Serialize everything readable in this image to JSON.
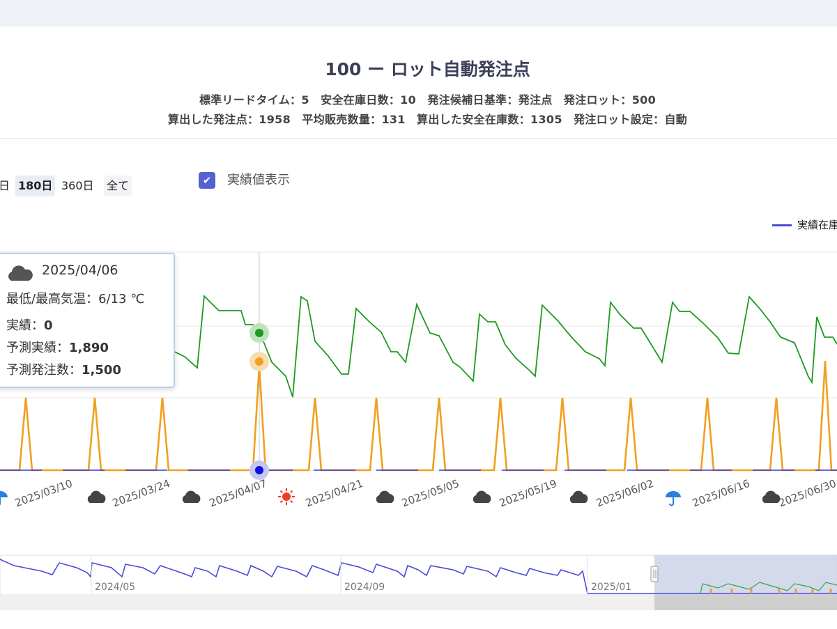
{
  "header": {
    "title": "100 ー ロット自動発注点",
    "subtitle_line1": "標準リードタイム：5　安全在庫日数：10　発注候補日基準：発注点　発注ロット：500",
    "subtitle_line2": "算出した発注点：1958　平均販売数量：131　算出した安全在庫数：1305　発注ロット設定：自動"
  },
  "controls": {
    "ranges": [
      {
        "label": "日",
        "active": false
      },
      {
        "label": "180日",
        "active": true
      },
      {
        "label": "360日",
        "active": false
      },
      {
        "label": "全て",
        "active": false
      }
    ],
    "show_actual_label": "実績値表示",
    "show_actual_checked": true
  },
  "legend": {
    "visible_entry": "実績在庫"
  },
  "tooltip": {
    "date": "2025/04/06",
    "weather_icon": "cloud-icon",
    "temp_label": "最低/最高気温：",
    "temp_value": "6/13 ℃",
    "actual_label": "実績：",
    "actual_value": "0",
    "pred_label": "予測実績：",
    "pred_value": "1,890",
    "order_label": "予測発注数：",
    "order_value": "1,500"
  },
  "chart_data": {
    "type": "line",
    "x_tick_labels": [
      "2025/03/10",
      "2025/03/24",
      "2025/04/07",
      "2025/04/21",
      "2025/05/05",
      "2025/05/19",
      "2025/06/02",
      "2025/06/16",
      "2025/06/30"
    ],
    "weather": [
      "rain",
      "cloud",
      "cloud",
      "sun",
      "cloud",
      "cloud",
      "cloud",
      "rain",
      "cloud"
    ],
    "colors": {
      "predicted_stock": "#1e9a1e",
      "predicted_order": "#f0a020",
      "actual": "#3535e0",
      "overview_line": "#4a4ad8"
    },
    "series": [
      {
        "name": "予測実績",
        "color": "#1e9a1e",
        "y": [
          1500,
          1830,
          1750,
          1750,
          1750,
          1650,
          1650,
          1500,
          1400,
          1150,
          1900,
          1400,
          1300,
          1250,
          1400,
          1300,
          1200,
          1000,
          1100,
          1000,
          1000,
          1500,
          1800,
          1600,
          1500,
          1550,
          1500,
          1450,
          1400,
          1000,
          1450,
          1800,
          1500,
          1500,
          1420,
          1320,
          1250,
          1200,
          1100,
          1100,
          1400,
          1850,
          1750,
          1650,
          1480,
          1400,
          1320,
          1170,
          1050,
          1050,
          1600,
          1700,
          1400,
          1300,
          1350,
          1080,
          1000,
          1850,
          1750,
          1650,
          1470,
          1450,
          1420,
          1300,
          1150,
          1000
        ]
      },
      {
        "name": "予測発注数",
        "color": "#f0a020",
        "y": [
          0,
          1000,
          0,
          0,
          1000,
          0,
          0,
          1000,
          0,
          0,
          1500,
          0,
          0,
          1000,
          0,
          0,
          1000,
          0,
          0,
          1000,
          0,
          0,
          1000,
          0,
          0,
          1000,
          0,
          0,
          1000,
          0,
          0,
          1000,
          0,
          0,
          1500,
          0
        ]
      }
    ],
    "highlight": {
      "date": "2025/04/06",
      "predicted_stock": 1890,
      "predicted_order": 1500,
      "actual": 0
    },
    "overview": {
      "x_labels": [
        "2024/05",
        "2024/09",
        "2025/01"
      ]
    }
  }
}
